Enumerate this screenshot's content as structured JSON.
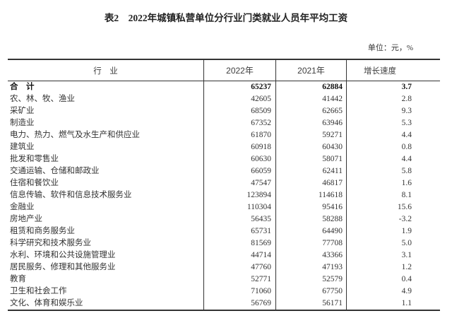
{
  "page": {
    "title": "表2　2022年城镇私营单位分行业门类就业人员年平均工资",
    "unit_note": "单位：元，%"
  },
  "table": {
    "columns": [
      "行　业",
      "2022年",
      "2021年",
      "增长速度"
    ],
    "rows": [
      {
        "industry": "合　计",
        "y2022": "65237",
        "y2021": "62884",
        "growth": "3.7",
        "bold": true
      },
      {
        "industry": "农、林、牧、渔业",
        "y2022": "42605",
        "y2021": "41442",
        "growth": "2.8"
      },
      {
        "industry": "采矿业",
        "y2022": "68509",
        "y2021": "62665",
        "growth": "9.3"
      },
      {
        "industry": "制造业",
        "y2022": "67352",
        "y2021": "63946",
        "growth": "5.3"
      },
      {
        "industry": "电力、热力、燃气及水生产和供应业",
        "y2022": "61870",
        "y2021": "59271",
        "growth": "4.4"
      },
      {
        "industry": "建筑业",
        "y2022": "60918",
        "y2021": "60430",
        "growth": "0.8"
      },
      {
        "industry": "批发和零售业",
        "y2022": "60630",
        "y2021": "58071",
        "growth": "4.4"
      },
      {
        "industry": "交通运输、仓储和邮政业",
        "y2022": "66059",
        "y2021": "62411",
        "growth": "5.8"
      },
      {
        "industry": "住宿和餐饮业",
        "y2022": "47547",
        "y2021": "46817",
        "growth": "1.6"
      },
      {
        "industry": "信息传输、软件和信息技术服务业",
        "y2022": "123894",
        "y2021": "114618",
        "growth": "8.1"
      },
      {
        "industry": "金融业",
        "y2022": "110304",
        "y2021": "95416",
        "growth": "15.6"
      },
      {
        "industry": "房地产业",
        "y2022": "56435",
        "y2021": "58288",
        "growth": "-3.2"
      },
      {
        "industry": "租赁和商务服务业",
        "y2022": "65731",
        "y2021": "64490",
        "growth": "1.9"
      },
      {
        "industry": "科学研究和技术服务业",
        "y2022": "81569",
        "y2021": "77708",
        "growth": "5.0"
      },
      {
        "industry": "水利、环境和公共设施管理业",
        "y2022": "44714",
        "y2021": "43366",
        "growth": "3.1"
      },
      {
        "industry": "居民服务、修理和其他服务业",
        "y2022": "47760",
        "y2021": "47193",
        "growth": "1.2"
      },
      {
        "industry": "教育",
        "y2022": "52771",
        "y2021": "52579",
        "growth": "0.4"
      },
      {
        "industry": "卫生和社会工作",
        "y2022": "71060",
        "y2021": "67750",
        "growth": "4.9"
      },
      {
        "industry": "文化、体育和娱乐业",
        "y2022": "56769",
        "y2021": "56171",
        "growth": "1.1"
      }
    ]
  }
}
